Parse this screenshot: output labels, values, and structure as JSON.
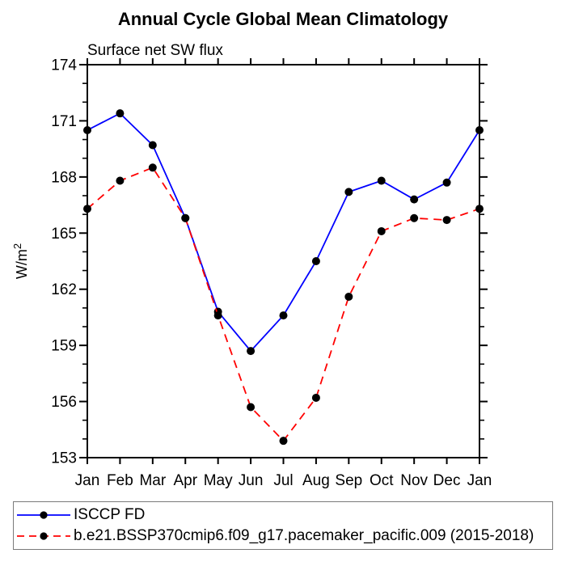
{
  "page": {
    "background": "#ffffff",
    "text_color": "#000000",
    "axis_color": "#000000"
  },
  "header": {
    "title": "Annual Cycle Global Mean Climatology",
    "subtitle": "Surface net SW flux"
  },
  "chart_data": {
    "type": "line",
    "title": "Annual Cycle Global Mean Climatology",
    "subtitle": "Surface net SW flux",
    "xlabel": "",
    "ylabel": "W/m²",
    "categories": [
      "Jan",
      "Feb",
      "Mar",
      "Apr",
      "May",
      "Jun",
      "Jul",
      "Aug",
      "Sep",
      "Oct",
      "Nov",
      "Dec",
      "Jan"
    ],
    "ylim": [
      153,
      174
    ],
    "yticks_major": [
      153,
      156,
      159,
      162,
      165,
      168,
      171,
      174
    ],
    "ytick_minor_step": 1,
    "grid": false,
    "legend_position": "bottom",
    "marker": "filled-circle",
    "marker_color": "#000000",
    "series": [
      {
        "name": "ISCCP FD",
        "color": "#0000ff",
        "line_style": "solid",
        "values": [
          170.5,
          171.4,
          169.7,
          165.8,
          160.8,
          158.7,
          160.6,
          163.5,
          167.2,
          167.8,
          166.8,
          167.7,
          170.5
        ]
      },
      {
        "name": "b.e21.BSSP370cmip6.f09_g17.pacemaker_pacific.009 (2015-2018)",
        "color": "#ff0000",
        "line_style": "dashed",
        "values": [
          166.3,
          167.8,
          168.5,
          165.8,
          160.6,
          155.7,
          153.9,
          156.2,
          161.6,
          165.1,
          165.8,
          165.7,
          166.3
        ]
      }
    ]
  }
}
